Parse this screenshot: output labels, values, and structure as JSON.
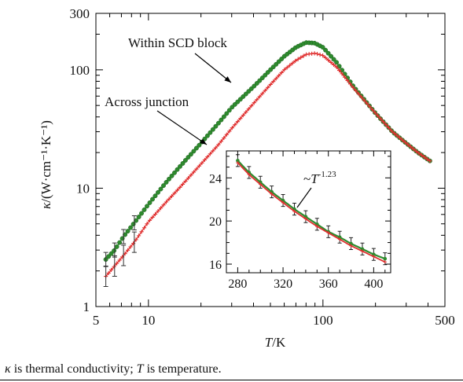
{
  "chart_data": [
    {
      "type": "scatter",
      "xscale": "log",
      "yscale": "log",
      "xlim": [
        5,
        500
      ],
      "ylim": [
        1,
        300
      ],
      "xticks": [
        5,
        10,
        100,
        500
      ],
      "xtick_labels": [
        "5",
        "10",
        "100",
        "500"
      ],
      "yticks": [
        1,
        10,
        100,
        300
      ],
      "ytick_labels": [
        "1",
        "10",
        "100",
        "300"
      ],
      "xlabel": "T/K",
      "ylabel": "κ/(W·cm⁻¹·K⁻¹)",
      "grid": false,
      "series": [
        {
          "name": "Within SCD block",
          "color": "#2e8b2e",
          "marker": "circle",
          "x": [
            5.7,
            6.4,
            7.2,
            8.3,
            10,
            12.5,
            15,
            20,
            25,
            30,
            40,
            50,
            60,
            70,
            80,
            90,
            100,
            120,
            150,
            200,
            250,
            300,
            350,
            410
          ],
          "y": [
            2.5,
            3.0,
            3.9,
            5.1,
            7.3,
            11,
            15,
            24,
            35,
            48,
            72,
            100,
            130,
            155,
            170,
            168,
            155,
            115,
            72,
            43,
            30,
            24,
            20,
            17
          ]
        },
        {
          "name": "Across junction",
          "color": "#e03030",
          "marker": "plus",
          "x": [
            5.7,
            6.4,
            7.2,
            8.3,
            10,
            12.5,
            15,
            20,
            25,
            30,
            40,
            50,
            60,
            70,
            80,
            90,
            100,
            120,
            150,
            200,
            250,
            300,
            350,
            410
          ],
          "y": [
            1.8,
            2.2,
            2.7,
            3.5,
            5.2,
            7.5,
            10,
            16,
            23,
            32,
            52,
            75,
            100,
            120,
            135,
            138,
            132,
            105,
            70,
            43,
            30,
            24,
            20,
            17
          ]
        }
      ],
      "annotations": [
        {
          "text": "Within SCD block",
          "x": 45,
          "y": 97
        },
        {
          "text": "Across junction",
          "x": 25,
          "y": 23
        }
      ]
    },
    {
      "type": "scatter",
      "role": "inset",
      "xlim": [
        270,
        415
      ],
      "ylim": [
        15.2,
        26.5
      ],
      "xticks": [
        280,
        320,
        360,
        400
      ],
      "xtick_labels": [
        "280",
        "320",
        "360",
        "400"
      ],
      "yticks": [
        16,
        20,
        24
      ],
      "ytick_labels": [
        "16",
        "20",
        "24"
      ],
      "grid": false,
      "series": [
        {
          "name": "Within SCD block",
          "color": "#2e8b2e",
          "marker": "circle",
          "error_bars": true,
          "x": [
            280,
            290,
            300,
            310,
            320,
            330,
            340,
            350,
            360,
            370,
            380,
            390,
            400,
            410
          ],
          "y": [
            25.6,
            24.5,
            23.6,
            22.7,
            21.9,
            21.1,
            20.4,
            19.7,
            19.0,
            18.5,
            17.9,
            17.4,
            16.9,
            16.5
          ],
          "err": 0.55
        },
        {
          "name": "Across junction",
          "color": "#e03030",
          "marker": "plus",
          "x": [
            280,
            290,
            300,
            310,
            320,
            330,
            340,
            350,
            360,
            370,
            380,
            390,
            400,
            410
          ],
          "y": [
            25.4,
            24.3,
            23.4,
            22.5,
            21.7,
            20.9,
            20.2,
            19.5,
            18.9,
            18.3,
            17.7,
            17.2,
            16.7,
            16.2
          ]
        }
      ],
      "annotation": {
        "text": "~T",
        "superscript": "-1.23"
      }
    }
  ],
  "caption": {
    "kappa_symbol": "κ",
    "kappa_text": " is thermal conductivity; ",
    "t_symbol": "T",
    "t_text": " is temperature."
  }
}
